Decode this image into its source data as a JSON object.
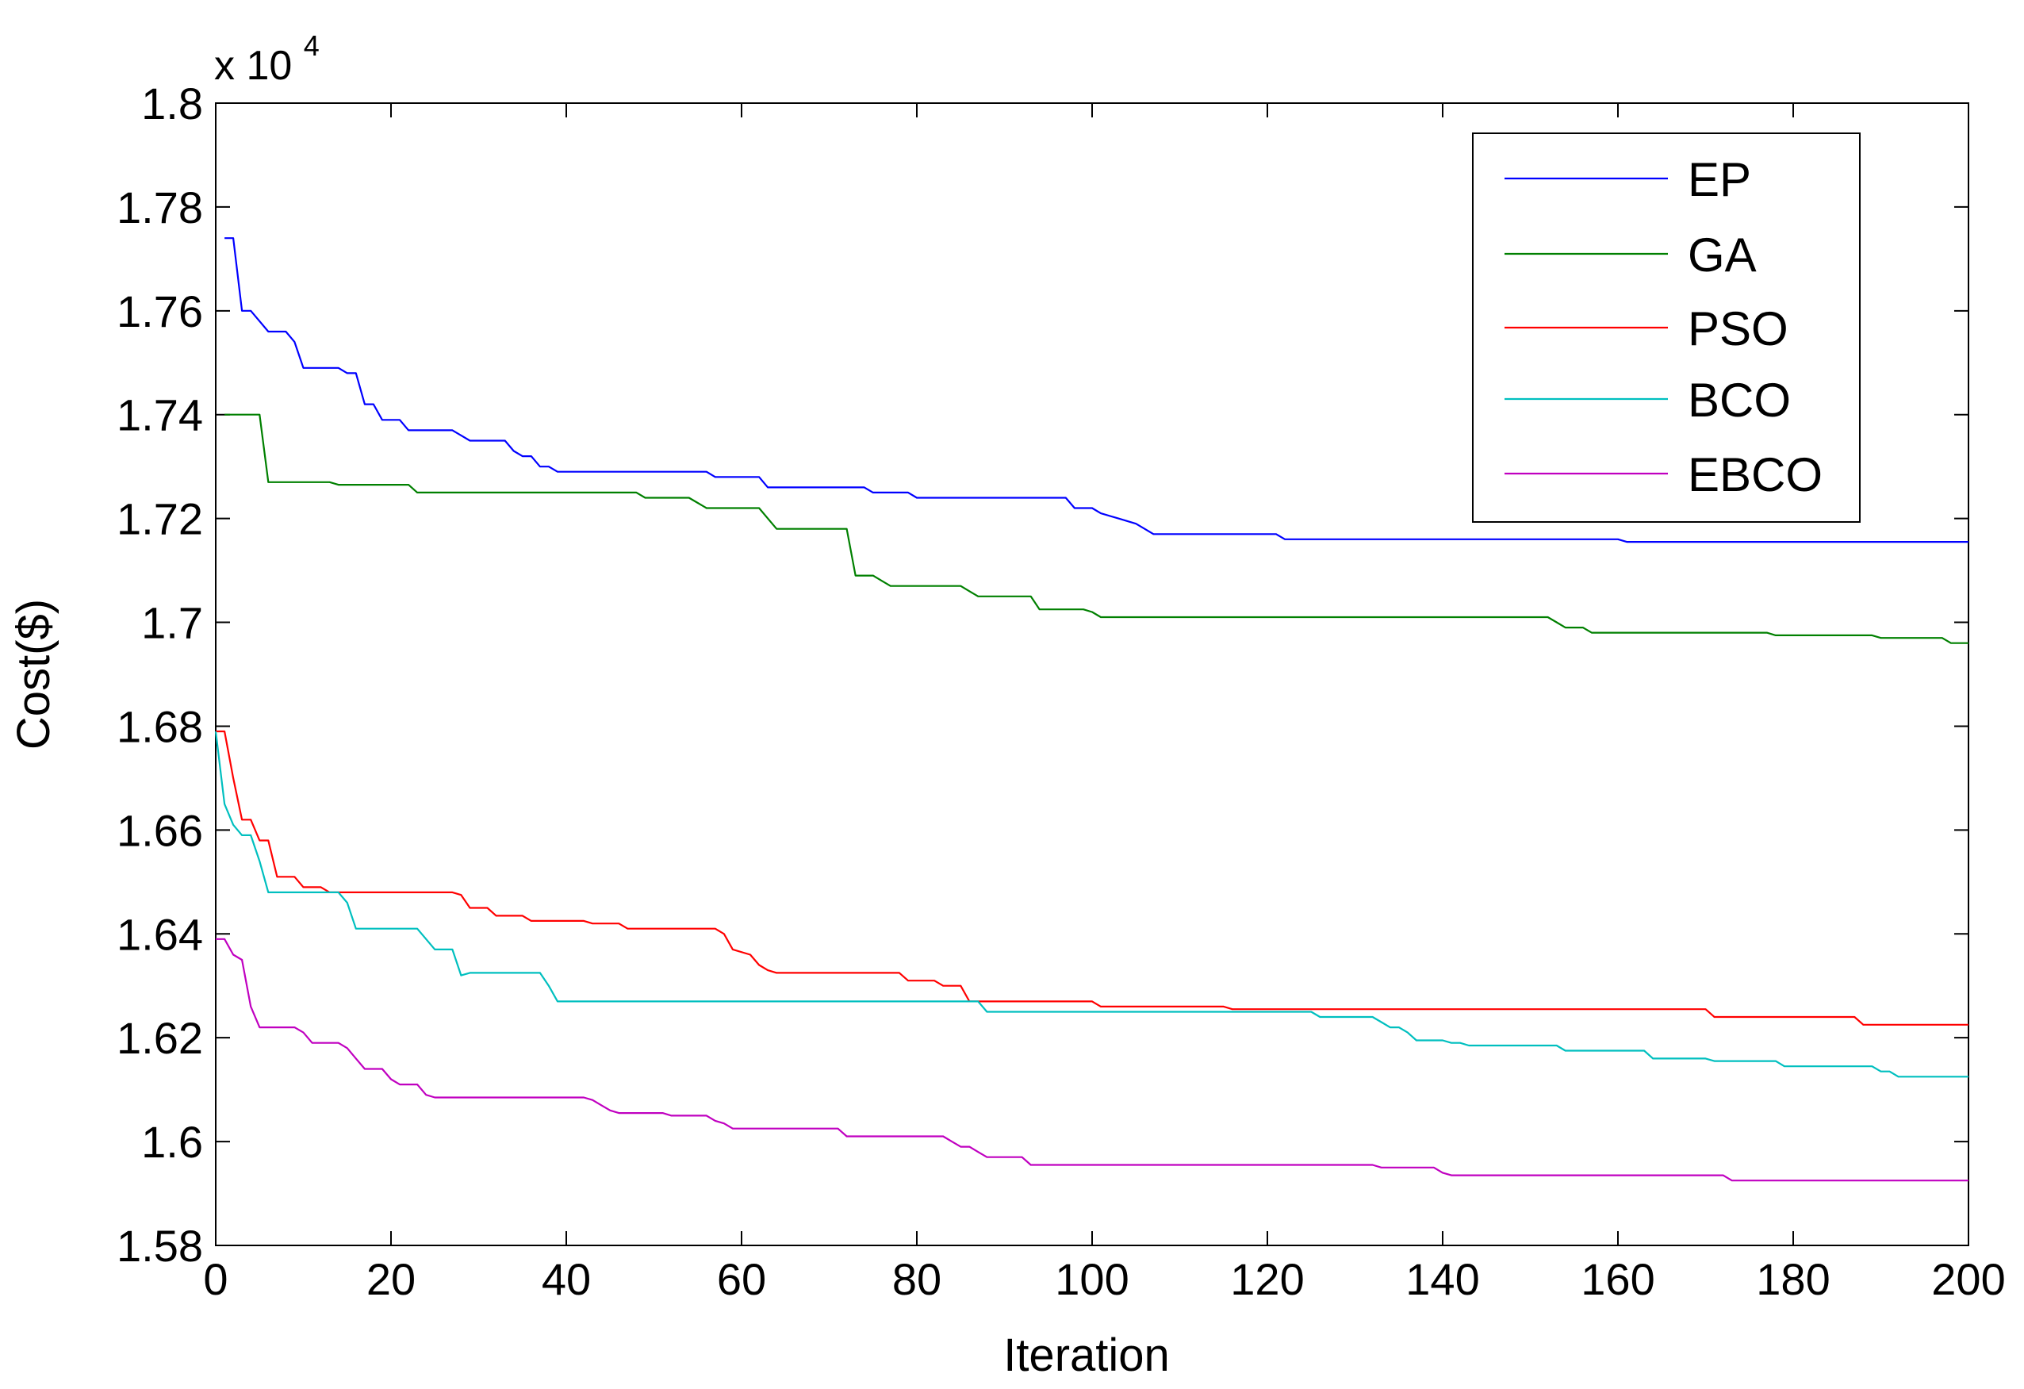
{
  "chart_data": {
    "type": "line",
    "title": "",
    "xlabel": "Iteration",
    "ylabel": "Cost($)",
    "y_scale_multiplier": {
      "base": "x 10",
      "exponent": "4"
    },
    "xlim": [
      0,
      200
    ],
    "ylim": [
      1.58,
      1.8
    ],
    "x_ticks": [
      "0",
      "20",
      "40",
      "60",
      "80",
      "100",
      "120",
      "140",
      "160",
      "180",
      "200"
    ],
    "y_ticks": [
      "1.58",
      "1.6",
      "1.62",
      "1.64",
      "1.66",
      "1.68",
      "1.7",
      "1.72",
      "1.74",
      "1.76",
      "1.78",
      "1.8"
    ],
    "grid": false,
    "legend_position": "top-right",
    "series": [
      {
        "name": "EP",
        "color": "#0000ff",
        "x": [
          1,
          2,
          3,
          4,
          5,
          6,
          7,
          8,
          9,
          10,
          14,
          15,
          16,
          17,
          18,
          19,
          20,
          21,
          22,
          27,
          28,
          29,
          30,
          33,
          34,
          35,
          36,
          37,
          38,
          39,
          40,
          41,
          56,
          57,
          62,
          63,
          74,
          75,
          79,
          80,
          97,
          98,
          100,
          101,
          103,
          105,
          106,
          107,
          108,
          121,
          122,
          160,
          161,
          200
        ],
        "y": [
          1.774,
          1.774,
          1.76,
          1.76,
          1.758,
          1.756,
          1.756,
          1.756,
          1.754,
          1.749,
          1.749,
          1.748,
          1.748,
          1.742,
          1.742,
          1.739,
          1.739,
          1.739,
          1.737,
          1.737,
          1.736,
          1.735,
          1.735,
          1.735,
          1.733,
          1.732,
          1.732,
          1.73,
          1.73,
          1.729,
          1.729,
          1.729,
          1.729,
          1.728,
          1.728,
          1.726,
          1.726,
          1.725,
          1.725,
          1.724,
          1.724,
          1.722,
          1.722,
          1.721,
          1.72,
          1.719,
          1.718,
          1.717,
          1.717,
          1.717,
          1.716,
          1.716,
          1.7155,
          1.7155
        ]
      },
      {
        "name": "GA",
        "color": "#008000",
        "x": [
          1,
          4,
          5,
          6,
          13,
          14,
          22,
          23,
          48,
          49,
          54,
          55,
          56,
          62,
          63,
          64,
          72,
          73,
          75,
          76,
          77,
          78,
          85,
          86,
          87,
          88,
          93,
          94,
          99,
          100,
          101,
          152,
          153,
          154,
          156,
          157,
          159,
          160,
          177,
          178,
          189,
          190,
          197,
          198,
          200
        ],
        "y": [
          1.74,
          1.74,
          1.74,
          1.727,
          1.727,
          1.7265,
          1.7265,
          1.725,
          1.725,
          1.724,
          1.724,
          1.723,
          1.722,
          1.722,
          1.72,
          1.718,
          1.718,
          1.709,
          1.709,
          1.708,
          1.707,
          1.707,
          1.707,
          1.706,
          1.705,
          1.705,
          1.705,
          1.7025,
          1.7025,
          1.702,
          1.701,
          1.701,
          1.7,
          1.699,
          1.699,
          1.698,
          1.698,
          1.698,
          1.698,
          1.6975,
          1.6975,
          1.697,
          1.697,
          1.696,
          1.696
        ]
      },
      {
        "name": "PSO",
        "color": "#ff0000",
        "x": [
          0,
          1,
          2,
          3,
          4,
          5,
          6,
          7,
          9,
          10,
          12,
          13,
          27,
          28,
          29,
          31,
          32,
          35,
          36,
          42,
          43,
          46,
          47,
          57,
          58,
          59,
          61,
          62,
          63,
          64,
          65,
          78,
          79,
          82,
          83,
          85,
          86,
          87,
          100,
          101,
          115,
          116,
          170,
          171,
          187,
          188,
          200
        ],
        "y": [
          1.679,
          1.679,
          1.67,
          1.662,
          1.662,
          1.658,
          1.658,
          1.651,
          1.651,
          1.649,
          1.649,
          1.648,
          1.648,
          1.6475,
          1.645,
          1.645,
          1.6435,
          1.6435,
          1.6425,
          1.6425,
          1.642,
          1.642,
          1.641,
          1.641,
          1.64,
          1.637,
          1.636,
          1.634,
          1.633,
          1.6325,
          1.6325,
          1.6325,
          1.631,
          1.631,
          1.63,
          1.63,
          1.627,
          1.627,
          1.627,
          1.626,
          1.626,
          1.6255,
          1.6255,
          1.624,
          1.624,
          1.6225,
          1.6225
        ]
      },
      {
        "name": "BCO",
        "color": "#00bfbf",
        "x": [
          0,
          1,
          2,
          3,
          4,
          5,
          6,
          14,
          15,
          16,
          23,
          24,
          25,
          27,
          28,
          29,
          37,
          38,
          39,
          87,
          88,
          125,
          126,
          132,
          133,
          134,
          135,
          136,
          137,
          140,
          141,
          142,
          143,
          144,
          153,
          154,
          163,
          164,
          170,
          171,
          178,
          179,
          189,
          190,
          191,
          192,
          200
        ],
        "y": [
          1.679,
          1.665,
          1.661,
          1.659,
          1.659,
          1.654,
          1.648,
          1.648,
          1.646,
          1.641,
          1.641,
          1.639,
          1.637,
          1.637,
          1.632,
          1.6325,
          1.6325,
          1.63,
          1.627,
          1.627,
          1.625,
          1.625,
          1.624,
          1.624,
          1.623,
          1.622,
          1.622,
          1.621,
          1.6195,
          1.6195,
          1.619,
          1.619,
          1.6185,
          1.6185,
          1.6185,
          1.6175,
          1.6175,
          1.616,
          1.616,
          1.6155,
          1.6155,
          1.6145,
          1.6145,
          1.6135,
          1.6135,
          1.6125,
          1.6125
        ]
      },
      {
        "name": "EBCO",
        "color": "#c000c0",
        "x": [
          0,
          1,
          2,
          3,
          4,
          5,
          6,
          9,
          10,
          11,
          14,
          15,
          16,
          17,
          19,
          20,
          21,
          23,
          24,
          25,
          42,
          43,
          44,
          45,
          46,
          51,
          52,
          56,
          57,
          58,
          59,
          61,
          62,
          71,
          72,
          73,
          74,
          83,
          84,
          85,
          86,
          87,
          88,
          92,
          93,
          132,
          133,
          139,
          140,
          141,
          172,
          173,
          200
        ],
        "y": [
          1.639,
          1.639,
          1.636,
          1.635,
          1.626,
          1.622,
          1.622,
          1.622,
          1.621,
          1.619,
          1.619,
          1.618,
          1.616,
          1.614,
          1.614,
          1.612,
          1.611,
          1.611,
          1.609,
          1.6085,
          1.6085,
          1.608,
          1.607,
          1.606,
          1.6055,
          1.6055,
          1.605,
          1.605,
          1.604,
          1.6035,
          1.6025,
          1.6025,
          1.6025,
          1.6025,
          1.601,
          1.601,
          1.601,
          1.601,
          1.6,
          1.599,
          1.599,
          1.598,
          1.597,
          1.597,
          1.5955,
          1.5955,
          1.595,
          1.595,
          1.594,
          1.5935,
          1.5935,
          1.5925,
          1.5925
        ]
      }
    ]
  }
}
